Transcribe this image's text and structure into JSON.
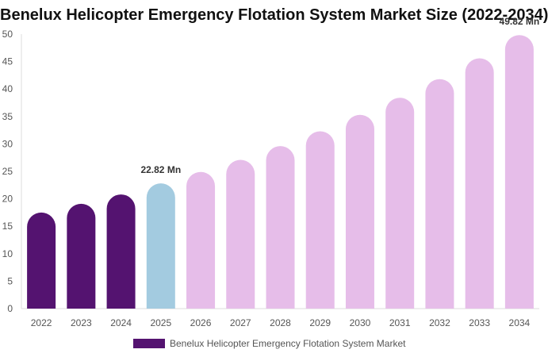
{
  "chart_data": {
    "type": "bar",
    "title": "Benelux Helicopter Emergency Flotation System Market Size (2022-2034)",
    "categories": [
      "2022",
      "2023",
      "2024",
      "2025",
      "2026",
      "2027",
      "2028",
      "2029",
      "2030",
      "2031",
      "2032",
      "2033",
      "2034"
    ],
    "series": [
      {
        "name": "Benelux Helicopter Emergency Flotation System Market",
        "values": [
          17.5,
          19.1,
          20.8,
          22.82,
          24.9,
          27.1,
          29.6,
          32.3,
          35.3,
          38.4,
          41.8,
          45.6,
          49.82
        ]
      }
    ],
    "ylim": [
      0,
      50
    ],
    "yticks": [
      0,
      5,
      10,
      15,
      20,
      25,
      30,
      35,
      40,
      45,
      50
    ],
    "data_labels": [
      {
        "category": "2025",
        "text": "22.82 Mn"
      },
      {
        "category": "2034",
        "text": "49.82 Mn"
      }
    ],
    "bar_colors": {
      "historical": "#541370",
      "current": "#a3cbe0",
      "forecast": "#e6bde9"
    },
    "historical_categories": [
      "2022",
      "2023",
      "2024"
    ],
    "current_category": "2025",
    "grid": false,
    "legend_position": "bottom",
    "legend_color": "#541370"
  }
}
